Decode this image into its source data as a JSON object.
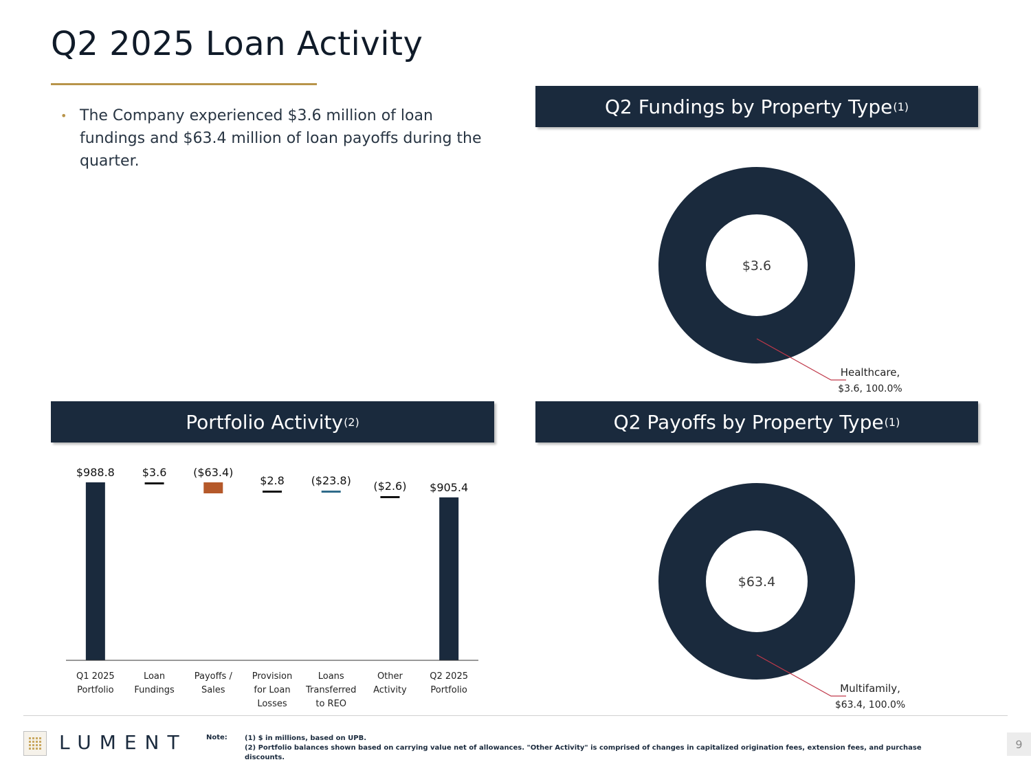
{
  "page": {
    "title": "Q2 2025 Loan Activity",
    "bullet": "The Company experienced $3.6 million of loan fundings and $63.4 million of loan payoffs during the quarter.",
    "page_number": "9"
  },
  "headers": {
    "fundings": "Q2 Fundings by Property Type",
    "fundings_sup": "(1)",
    "portfolio": "Portfolio Activity",
    "portfolio_sup": "(2)",
    "payoffs": "Q2 Payoffs by Property Type",
    "payoffs_sup": "(1)"
  },
  "footer": {
    "logo": "LUMENT",
    "note_label": "Note:",
    "note_1": "(1) $ in millions, based on UPB.",
    "note_2": "(2) Portfolio balances shown based on carrying value net of allowances. \"Other Activity\" is comprised of changes in capitalized origination fees, extension fees, and purchase discounts."
  },
  "colors": {
    "navy": "#1a2a3d",
    "gold": "#b8944a",
    "payoff_bar": "#b5592a",
    "reo_bar": "#2f6b8a",
    "leader": "#c0394a"
  },
  "chart_data": [
    {
      "type": "pie",
      "subtype": "donut",
      "center_label": "$3.6",
      "slices": [
        {
          "label": "Healthcare,",
          "value_label": "$3.6, 100.0%",
          "value": 3.6,
          "percent": 100.0
        }
      ]
    },
    {
      "type": "bar",
      "subtype": "waterfall",
      "categories": [
        [
          "Q1 2025",
          "Portfolio"
        ],
        [
          "Loan",
          "Fundings"
        ],
        [
          "Payoffs /",
          "Sales"
        ],
        [
          "Provision",
          "for Loan",
          "Losses"
        ],
        [
          "Loans",
          "Transferred",
          "to REO"
        ],
        [
          "Other",
          "Activity"
        ],
        [
          "Q2 2025",
          "Portfolio"
        ]
      ],
      "values": [
        988.8,
        3.6,
        -63.4,
        2.8,
        -23.8,
        -2.6,
        905.4
      ],
      "value_labels": [
        "$988.8",
        "$3.6",
        "($63.4)",
        "$2.8",
        "($23.8)",
        "($2.6)",
        "$905.4"
      ],
      "kinds": [
        "total",
        "delta",
        "delta",
        "delta",
        "delta",
        "delta",
        "total"
      ]
    },
    {
      "type": "pie",
      "subtype": "donut",
      "center_label": "$63.4",
      "slices": [
        {
          "label": "Multifamily,",
          "value_label": "$63.4, 100.0%",
          "value": 63.4,
          "percent": 100.0
        }
      ]
    }
  ]
}
